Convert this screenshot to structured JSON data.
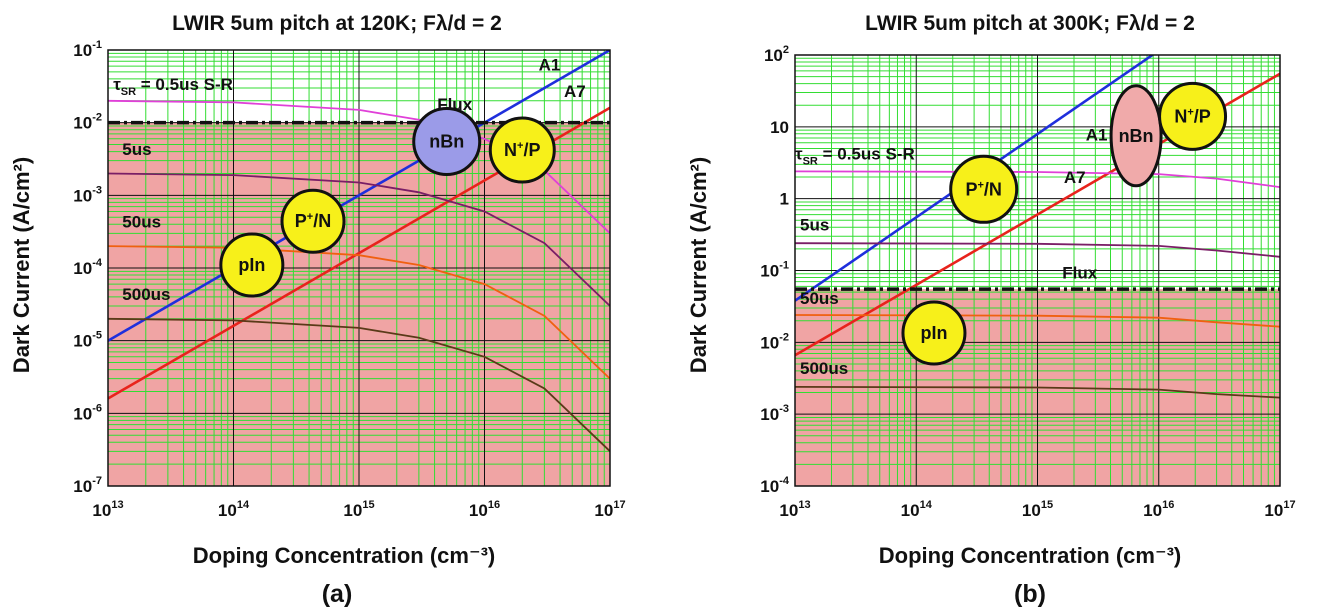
{
  "colors": {
    "grid": "#33dd33",
    "grid_major": "#111111",
    "shade": "#f0a4a4",
    "a1": "#1f2fdc",
    "a7": "#e8231c",
    "tau_0_5us": "#e040d8",
    "tau_5us": "#7a1e66",
    "tau_50us": "#f06010",
    "tau_500us": "#5a3a18",
    "flux": "#111111",
    "bubble_yellow": "#f7f01a",
    "bubble_nbn_a": "#9b9be8",
    "bubble_nbn_b": "#f0aaaa"
  },
  "chart_data": [
    {
      "type": "line",
      "panel_label": "(a)",
      "title": "LWIR 5um pitch at 120K; Fλ/d = 2",
      "xlabel": "Doping Concentration (cm⁻³)",
      "ylabel": "Dark Current (A/cm²)",
      "x_scale": "log",
      "y_scale": "log",
      "xlim": [
        10000000000000.0,
        1e+17
      ],
      "ylim": [
        1e-07,
        0.1
      ],
      "x_ticks": [
        {
          "value": 10000000000000.0,
          "base": "10",
          "exp": "13"
        },
        {
          "value": 100000000000000.0,
          "base": "10",
          "exp": "14"
        },
        {
          "value": 1000000000000000.0,
          "base": "10",
          "exp": "15"
        },
        {
          "value": 1e+16,
          "base": "10",
          "exp": "16"
        },
        {
          "value": 1e+17,
          "base": "10",
          "exp": "17"
        }
      ],
      "y_ticks": [
        {
          "value": 1e-07,
          "base": "10",
          "exp": "-7"
        },
        {
          "value": 1e-06,
          "base": "10",
          "exp": "-6"
        },
        {
          "value": 1e-05,
          "base": "10",
          "exp": "-5"
        },
        {
          "value": 0.0001,
          "base": "10",
          "exp": "-4"
        },
        {
          "value": 0.001,
          "base": "10",
          "exp": "-3"
        },
        {
          "value": 0.01,
          "base": "10",
          "exp": "-2"
        },
        {
          "value": 0.1,
          "base": "10",
          "exp": "-1"
        }
      ],
      "grid": true,
      "flux_level": 0.01,
      "shade_below_flux": true,
      "series": [
        {
          "key": "a1",
          "x": [
            10000000000000.0,
            1e+17
          ],
          "y": [
            1e-05,
            0.1
          ]
        },
        {
          "key": "a7",
          "x": [
            10000000000000.0,
            1e+17
          ],
          "y": [
            1.6e-06,
            0.016
          ]
        },
        {
          "key": "tau_0_5us",
          "x": [
            10000000000000.0,
            100000000000000.0,
            1000000000000000.0,
            3000000000000000.0,
            1e+16,
            3e+16,
            1e+17
          ],
          "y": [
            0.02,
            0.019,
            0.015,
            0.011,
            0.006,
            0.0022,
            0.0003
          ]
        },
        {
          "key": "tau_5us",
          "x": [
            10000000000000.0,
            100000000000000.0,
            1000000000000000.0,
            3000000000000000.0,
            1e+16,
            3e+16,
            1e+17
          ],
          "y": [
            0.002,
            0.0019,
            0.0015,
            0.0011,
            0.0006,
            0.00022,
            3e-05
          ]
        },
        {
          "key": "tau_50us",
          "x": [
            10000000000000.0,
            100000000000000.0,
            1000000000000000.0,
            3000000000000000.0,
            1e+16,
            3e+16,
            1e+17
          ],
          "y": [
            0.0002,
            0.00019,
            0.00015,
            0.00011,
            6e-05,
            2.2e-05,
            3e-06
          ]
        },
        {
          "key": "tau_500us",
          "x": [
            10000000000000.0,
            100000000000000.0,
            1000000000000000.0,
            3000000000000000.0,
            1e+16,
            3e+16,
            1e+17
          ],
          "y": [
            2e-05,
            1.9e-05,
            1.5e-05,
            1.1e-05,
            6e-06,
            2.2e-06,
            3e-07
          ]
        }
      ],
      "annotations": [
        {
          "key": "tsr",
          "tau": "τ",
          "sub": "SR",
          "text": " = 0.5us   S-R",
          "x": 11000000000000.0,
          "y": 0.028
        },
        {
          "key": "a1",
          "text": "A1",
          "x": 2.7e+16,
          "y": 0.052
        },
        {
          "key": "a7",
          "text": "A7",
          "x": 4.3e+16,
          "y": 0.0225
        },
        {
          "key": "flux",
          "text": "Flux",
          "x": 4200000000000000.0,
          "y": 0.015
        },
        {
          "key": "t5",
          "text": "5us",
          "x": 13000000000000.0,
          "y": 0.0036
        },
        {
          "key": "t50",
          "text": "50us",
          "x": 13000000000000.0,
          "y": 0.00036
        },
        {
          "key": "t500",
          "text": "500us",
          "x": 13000000000000.0,
          "y": 3.6e-05
        }
      ],
      "bubbles": [
        {
          "key": "nbn",
          "text": "nBn",
          "sup": "",
          "text2": "",
          "x": 5000000000000000.0,
          "y": 0.0055,
          "fill": "#9b9be8",
          "rx": 33,
          "ry": 33
        },
        {
          "key": "np",
          "text": "N",
          "sup": "+",
          "text2": "/P",
          "x": 2e+16,
          "y": 0.0042,
          "fill": "#f7f01a",
          "rx": 32,
          "ry": 32
        },
        {
          "key": "pn",
          "text": "P",
          "sup": "+",
          "text2": "/N",
          "x": 430000000000000.0,
          "y": 0.00044,
          "fill": "#f7f01a",
          "rx": 31,
          "ry": 31
        },
        {
          "key": "pin",
          "text": "pIn",
          "sup": "",
          "text2": "",
          "x": 140000000000000.0,
          "y": 0.00011,
          "fill": "#f7f01a",
          "rx": 31,
          "ry": 31
        }
      ]
    },
    {
      "type": "line",
      "panel_label": "(b)",
      "title": "LWIR 5um pitch at 300K; Fλ/d = 2",
      "xlabel": "Doping Concentration (cm⁻³)",
      "ylabel": "Dark Current (A/cm²)",
      "x_scale": "log",
      "y_scale": "log",
      "xlim": [
        10000000000000.0,
        1e+17
      ],
      "ylim": [
        0.0001,
        100
      ],
      "x_ticks": [
        {
          "value": 10000000000000.0,
          "base": "10",
          "exp": "13"
        },
        {
          "value": 100000000000000.0,
          "base": "10",
          "exp": "14"
        },
        {
          "value": 1000000000000000.0,
          "base": "10",
          "exp": "15"
        },
        {
          "value": 1e+16,
          "base": "10",
          "exp": "16"
        },
        {
          "value": 1e+17,
          "base": "10",
          "exp": "17"
        }
      ],
      "y_ticks": [
        {
          "value": 0.0001,
          "base": "10",
          "exp": "-4"
        },
        {
          "value": 0.001,
          "base": "10",
          "exp": "-3"
        },
        {
          "value": 0.01,
          "base": "10",
          "exp": "-2"
        },
        {
          "value": 0.1,
          "base": "10",
          "exp": "-1"
        },
        {
          "value": 1,
          "base": "1",
          "exp": ""
        },
        {
          "value": 10,
          "base": "10",
          "exp": ""
        },
        {
          "value": 100,
          "base": "10",
          "exp": "2"
        }
      ],
      "grid": true,
      "flux_level": 0.055,
      "shade_below_flux": true,
      "series": [
        {
          "key": "a1",
          "x": [
            10000000000000.0,
            1e+16
          ],
          "y": [
            0.038,
            115
          ]
        },
        {
          "key": "a7",
          "x": [
            10000000000000.0,
            1e+17
          ],
          "y": [
            0.0066,
            55
          ]
        },
        {
          "key": "tau_0_5us",
          "x": [
            10000000000000.0,
            1000000000000000.0,
            1e+16,
            3e+16,
            1e+17
          ],
          "y": [
            2.4,
            2.35,
            2.2,
            1.9,
            1.45
          ]
        },
        {
          "key": "tau_5us",
          "x": [
            10000000000000.0,
            1000000000000000.0,
            1e+16,
            3e+16,
            1e+17
          ],
          "y": [
            0.24,
            0.235,
            0.22,
            0.19,
            0.155
          ]
        },
        {
          "key": "tau_50us",
          "x": [
            10000000000000.0,
            1000000000000000.0,
            1e+16,
            3e+16,
            1e+17
          ],
          "y": [
            0.024,
            0.0235,
            0.022,
            0.019,
            0.0165
          ]
        },
        {
          "key": "tau_500us",
          "x": [
            10000000000000.0,
            1000000000000000.0,
            1e+16,
            3e+16,
            1e+17
          ],
          "y": [
            0.0024,
            0.00235,
            0.0022,
            0.0019,
            0.0017
          ]
        }
      ],
      "annotations": [
        {
          "key": "tsr",
          "tau": "τ",
          "sub": "SR",
          "text": " = 0.5us  S-R",
          "x": 10000000000000.0,
          "y": 3.5
        },
        {
          "key": "a1",
          "text": "A1",
          "x": 2500000000000000.0,
          "y": 6.5
        },
        {
          "key": "a7",
          "text": "A7",
          "x": 1650000000000000.0,
          "y": 1.65
        },
        {
          "key": "flux",
          "text": "Flux",
          "x": 1600000000000000.0,
          "y": 0.078
        },
        {
          "key": "t5",
          "text": "5us",
          "x": 11000000000000.0,
          "y": 0.36
        },
        {
          "key": "t50",
          "text": "50us",
          "x": 11000000000000.0,
          "y": 0.034
        },
        {
          "key": "t500",
          "text": "500us",
          "x": 11000000000000.0,
          "y": 0.0036
        }
      ],
      "bubbles": [
        {
          "key": "nbn",
          "text": "nBn",
          "sup": "",
          "text2": "",
          "x": 6500000000000000.0,
          "y": 7.5,
          "fill": "#f0aaaa",
          "rx": 25,
          "ry": 50
        },
        {
          "key": "np",
          "text": "N",
          "sup": "+",
          "text2": "/P",
          "x": 1.9e+16,
          "y": 14,
          "fill": "#f7f01a",
          "rx": 33,
          "ry": 33
        },
        {
          "key": "pn",
          "text": "P",
          "sup": "+",
          "text2": "/N",
          "x": 360000000000000.0,
          "y": 1.35,
          "fill": "#f7f01a",
          "rx": 33,
          "ry": 33
        },
        {
          "key": "pin",
          "text": "pIn",
          "sup": "",
          "text2": "",
          "x": 140000000000000.0,
          "y": 0.0135,
          "fill": "#f7f01a",
          "rx": 31,
          "ry": 31
        }
      ]
    }
  ]
}
